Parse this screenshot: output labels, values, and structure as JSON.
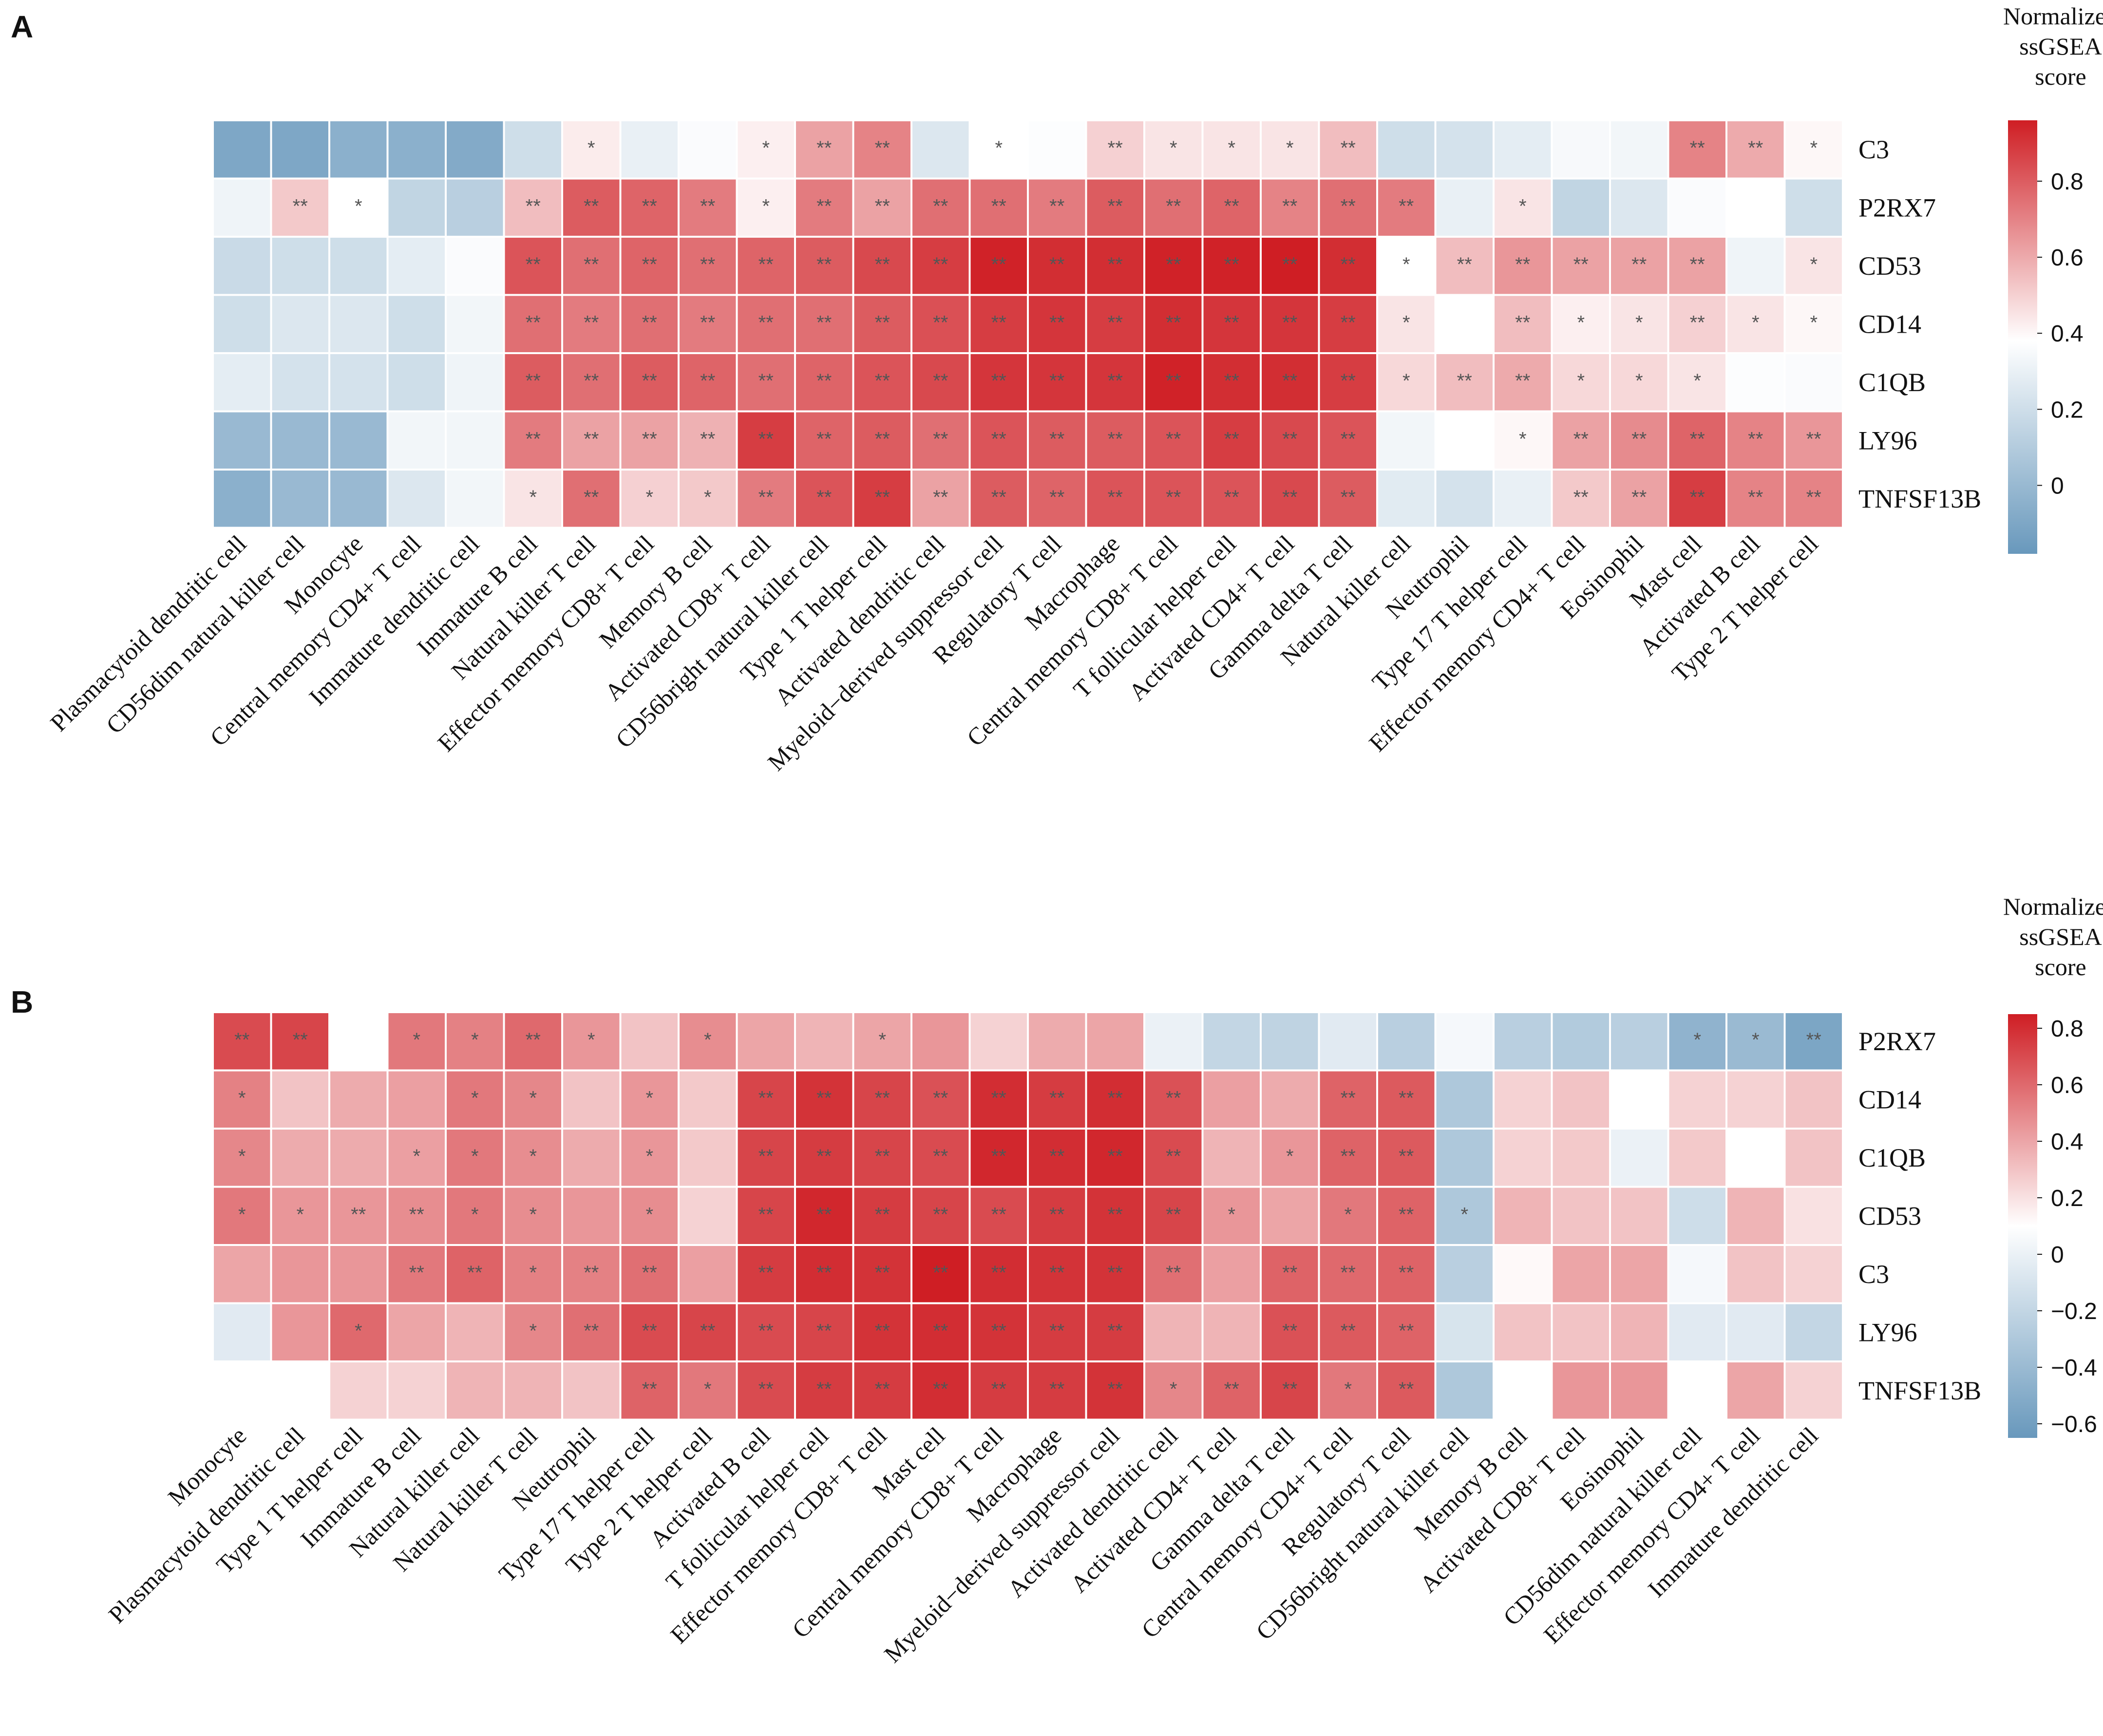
{
  "chart_data": [
    {
      "type": "heatmap",
      "panel_label": "A",
      "colorbar_title": [
        "Normalized",
        "ssGSEA",
        "score"
      ],
      "colorbar_ticks": [
        "0",
        "0.2",
        "0.4",
        "0.6",
        "0.8"
      ],
      "vmin": -0.18,
      "vmax": 0.96,
      "vcenter": 0.38,
      "rows": [
        "C3",
        "P2RX7",
        "CD53",
        "CD14",
        "C1QB",
        "LY96",
        "TNFSF13B"
      ],
      "columns": [
        "Plasmacytoid dendritic cell",
        "CD56dim natural killer cell",
        "Monocyte",
        "Central memory CD4+ T cell",
        "Immature dendritic cell",
        "Immature  B cell",
        "Natural killer T cell",
        "Effector memory CD8+ T cell",
        "Memory B cell",
        "Activated CD8+ T cell",
        "CD56bright natural killer cell",
        "Type 1 T helper cell",
        "Activated dendritic cell",
        "Myeloid−derived suppressor cell",
        "Regulatory T cell",
        "Macrophage",
        "Central memory CD8+ T cell",
        "T follicular helper cell",
        "Activated CD4+ T cell",
        "Gamma delta T cell",
        "Natural killer cell",
        "Neutrophil",
        "Type 17 T helper cell",
        "Effector memory CD4+ T cell",
        "Eosinophil",
        "Mast cell",
        "Activated B cell",
        "Type 2 T helper cell"
      ],
      "values": [
        [
          -0.1,
          -0.1,
          -0.05,
          -0.05,
          -0.08,
          0.2,
          0.43,
          0.3,
          0.36,
          0.42,
          0.62,
          0.7,
          0.25,
          0.38,
          0.37,
          0.5,
          0.45,
          0.45,
          0.45,
          0.55,
          0.2,
          0.22,
          0.28,
          0.35,
          0.33,
          0.7,
          0.6,
          0.4
        ],
        [
          0.32,
          0.52,
          0.38,
          0.15,
          0.12,
          0.55,
          0.8,
          0.78,
          0.72,
          0.42,
          0.72,
          0.62,
          0.75,
          0.75,
          0.72,
          0.8,
          0.75,
          0.78,
          0.7,
          0.75,
          0.72,
          0.3,
          0.45,
          0.15,
          0.25,
          0.36,
          0.38,
          0.2
        ],
        [
          0.18,
          0.2,
          0.2,
          0.28,
          0.36,
          0.82,
          0.75,
          0.78,
          0.75,
          0.78,
          0.8,
          0.85,
          0.88,
          0.95,
          0.92,
          0.92,
          0.95,
          0.95,
          0.96,
          0.92,
          0.38,
          0.55,
          0.65,
          0.62,
          0.62,
          0.62,
          0.32,
          0.45
        ],
        [
          0.2,
          0.25,
          0.25,
          0.2,
          0.33,
          0.75,
          0.72,
          0.75,
          0.72,
          0.75,
          0.75,
          0.8,
          0.83,
          0.88,
          0.9,
          0.88,
          0.92,
          0.9,
          0.9,
          0.88,
          0.45,
          0.38,
          0.55,
          0.42,
          0.45,
          0.5,
          0.45,
          0.4
        ],
        [
          0.28,
          0.22,
          0.22,
          0.2,
          0.32,
          0.8,
          0.75,
          0.8,
          0.78,
          0.75,
          0.78,
          0.82,
          0.85,
          0.9,
          0.9,
          0.9,
          0.95,
          0.92,
          0.92,
          0.88,
          0.48,
          0.55,
          0.6,
          0.48,
          0.48,
          0.45,
          0.37,
          0.36
        ],
        [
          0.0,
          0.0,
          0.0,
          0.33,
          0.33,
          0.72,
          0.62,
          0.62,
          0.58,
          0.88,
          0.78,
          0.8,
          0.75,
          0.82,
          0.8,
          0.8,
          0.82,
          0.88,
          0.85,
          0.82,
          0.33,
          0.38,
          0.4,
          0.62,
          0.68,
          0.78,
          0.7,
          0.65
        ],
        [
          -0.05,
          0.0,
          0.0,
          0.25,
          0.33,
          0.45,
          0.75,
          0.5,
          0.52,
          0.72,
          0.82,
          0.88,
          0.62,
          0.8,
          0.78,
          0.82,
          0.82,
          0.82,
          0.85,
          0.8,
          0.27,
          0.22,
          0.3,
          0.52,
          0.62,
          0.88,
          0.7,
          0.7
        ]
      ],
      "significance": [
        [
          "",
          "",
          "",
          "",
          "",
          "",
          "*",
          "",
          "",
          "*",
          "**",
          "**",
          "",
          "*",
          "",
          "**",
          "*",
          "*",
          "*",
          "**",
          "",
          "",
          "",
          "",
          "",
          "**",
          "**",
          "*"
        ],
        [
          "",
          "**",
          "*",
          "",
          "",
          "**",
          "**",
          "**",
          "**",
          "*",
          "**",
          "**",
          "**",
          "**",
          "**",
          "**",
          "**",
          "**",
          "**",
          "**",
          "**",
          "",
          "*",
          "",
          "",
          "",
          "",
          ""
        ],
        [
          "",
          "",
          "",
          "",
          "",
          "**",
          "**",
          "**",
          "**",
          "**",
          "**",
          "**",
          "**",
          "**",
          "**",
          "**",
          "**",
          "**",
          "**",
          "**",
          "*",
          "**",
          "**",
          "**",
          "**",
          "**",
          "",
          "*"
        ],
        [
          "",
          "",
          "",
          "",
          "",
          "**",
          "**",
          "**",
          "**",
          "**",
          "**",
          "**",
          "**",
          "**",
          "**",
          "**",
          "**",
          "**",
          "**",
          "**",
          "*",
          "",
          "**",
          "*",
          "*",
          "**",
          "*",
          "*"
        ],
        [
          "",
          "",
          "",
          "",
          "",
          "**",
          "**",
          "**",
          "**",
          "**",
          "**",
          "**",
          "**",
          "**",
          "**",
          "**",
          "**",
          "**",
          "**",
          "**",
          "*",
          "**",
          "**",
          "*",
          "*",
          "*",
          "",
          ""
        ],
        [
          "",
          "",
          "",
          "",
          "",
          "**",
          "**",
          "**",
          "**",
          "**",
          "**",
          "**",
          "**",
          "**",
          "**",
          "**",
          "**",
          "**",
          "**",
          "**",
          "",
          "",
          "*",
          "**",
          "**",
          "**",
          "**",
          "**"
        ],
        [
          "",
          "",
          "",
          "",
          "",
          "*",
          "**",
          "*",
          "*",
          "**",
          "**",
          "**",
          "**",
          "**",
          "**",
          "**",
          "**",
          "**",
          "**",
          "**",
          "",
          "",
          "",
          "**",
          "**",
          "**",
          "**",
          "**"
        ]
      ]
    },
    {
      "type": "heatmap",
      "panel_label": "B",
      "colorbar_title": [
        "Normalized",
        "ssGSEA",
        "score"
      ],
      "colorbar_ticks": [
        "−0.6",
        "−0.4",
        "−0.2",
        "0",
        "0.2",
        "0.4",
        "0.6",
        "0.8"
      ],
      "vmin": -0.65,
      "vmax": 0.85,
      "vcenter": 0.1,
      "rows": [
        "P2RX7",
        "CD14",
        "C1QB",
        "CD53",
        "C3",
        "LY96",
        "TNFSF13B"
      ],
      "columns": [
        "Monocyte",
        "Plasmacytoid dendritic cell",
        "Type 1 T helper cell",
        "Immature  B cell",
        "Natural killer cell",
        "Natural killer T cell",
        "Neutrophil",
        "Type 17 T helper cell",
        "Type 2 T helper cell",
        "Activated B cell",
        "T follicular helper cell",
        "Effector memory CD8+ T cell",
        "Mast cell",
        "Central memory CD8+ T cell",
        "Macrophage",
        "Myeloid−derived suppressor cell",
        "Activated dendritic cell",
        "Activated CD4+ T cell",
        "Gamma delta T cell",
        "Central memory CD4+ T cell",
        "Regulatory T cell",
        "CD56bright natural killer cell",
        "Memory B cell",
        "Activated CD8+ T cell",
        "Eosinophil",
        "CD56dim natural killer cell",
        "Effector memory CD4+ T cell",
        "Immature dendritic cell"
      ],
      "values": [
        [
          0.7,
          0.72,
          0.1,
          0.55,
          0.52,
          0.6,
          0.45,
          0.3,
          0.48,
          0.4,
          0.35,
          0.4,
          0.45,
          0.25,
          0.38,
          0.4,
          0.0,
          -0.2,
          -0.22,
          -0.05,
          -0.25,
          0.05,
          -0.25,
          -0.28,
          -0.25,
          -0.45,
          -0.4,
          -0.55
        ],
        [
          0.52,
          0.3,
          0.38,
          0.42,
          0.55,
          0.5,
          0.3,
          0.45,
          0.28,
          0.72,
          0.78,
          0.72,
          0.68,
          0.8,
          0.75,
          0.8,
          0.68,
          0.42,
          0.38,
          0.62,
          0.65,
          -0.3,
          0.25,
          0.3,
          0.1,
          0.25,
          0.25,
          0.3
        ],
        [
          0.5,
          0.38,
          0.38,
          0.42,
          0.55,
          0.48,
          0.38,
          0.45,
          0.28,
          0.72,
          0.75,
          0.72,
          0.7,
          0.82,
          0.8,
          0.82,
          0.7,
          0.35,
          0.45,
          0.62,
          0.65,
          -0.3,
          0.25,
          0.28,
          0.0,
          0.28,
          0.1,
          0.3
        ],
        [
          0.55,
          0.45,
          0.45,
          0.48,
          0.55,
          0.48,
          0.45,
          0.48,
          0.25,
          0.72,
          0.82,
          0.75,
          0.72,
          0.7,
          0.75,
          0.78,
          0.72,
          0.45,
          0.4,
          0.55,
          0.62,
          -0.3,
          0.35,
          0.3,
          0.3,
          -0.15,
          0.35,
          0.2
        ],
        [
          0.4,
          0.45,
          0.45,
          0.55,
          0.62,
          0.52,
          0.52,
          0.58,
          0.42,
          0.75,
          0.8,
          0.78,
          0.85,
          0.8,
          0.78,
          0.78,
          0.58,
          0.42,
          0.62,
          0.6,
          0.62,
          -0.25,
          0.12,
          0.4,
          0.4,
          0.05,
          0.3,
          0.25
        ],
        [
          -0.05,
          0.45,
          0.6,
          0.4,
          0.35,
          0.5,
          0.58,
          0.7,
          0.72,
          0.7,
          0.72,
          0.78,
          0.8,
          0.78,
          0.75,
          0.75,
          0.35,
          0.35,
          0.68,
          0.65,
          0.62,
          -0.1,
          0.3,
          0.3,
          0.35,
          -0.05,
          -0.05,
          -0.2
        ],
        [
          0.1,
          0.1,
          0.25,
          0.25,
          0.35,
          0.35,
          0.3,
          0.62,
          0.55,
          0.7,
          0.75,
          0.75,
          0.8,
          0.75,
          0.75,
          0.78,
          0.5,
          0.62,
          0.72,
          0.55,
          0.65,
          -0.3,
          0.1,
          0.45,
          0.45,
          0.1,
          0.4,
          0.25
        ]
      ],
      "significance": [
        [
          "**",
          "**",
          "",
          "*",
          "*",
          "**",
          "*",
          "",
          "*",
          "",
          "",
          "*",
          "",
          "",
          "",
          "",
          "",
          "",
          "",
          "",
          "",
          "",
          "",
          "",
          "",
          "*",
          "*",
          "**"
        ],
        [
          "*",
          "",
          "",
          "",
          "*",
          "*",
          "",
          "*",
          "",
          "**",
          "**",
          "**",
          "**",
          "**",
          "**",
          "**",
          "**",
          "",
          "",
          "**",
          "**",
          "",
          "",
          "",
          "",
          "",
          "",
          ""
        ],
        [
          "*",
          "",
          "",
          "*",
          "*",
          "*",
          "",
          "*",
          "",
          "**",
          "**",
          "**",
          "**",
          "**",
          "**",
          "**",
          "**",
          "",
          "*",
          "**",
          "**",
          "",
          "",
          "",
          "",
          "",
          "",
          ""
        ],
        [
          "*",
          "*",
          "**",
          "**",
          "*",
          "*",
          "",
          "*",
          "",
          "**",
          "**",
          "**",
          "**",
          "**",
          "**",
          "**",
          "**",
          "*",
          "",
          "*",
          "**",
          "*",
          "",
          "",
          "",
          "",
          "",
          ""
        ],
        [
          "",
          "",
          "",
          "**",
          "**",
          "*",
          "**",
          "**",
          "",
          "**",
          "**",
          "**",
          "**",
          "**",
          "**",
          "**",
          "**",
          "",
          "**",
          "**",
          "**",
          "",
          "",
          "",
          "",
          "",
          "",
          ""
        ],
        [
          "",
          "",
          "*",
          "",
          "",
          "*",
          "**",
          "**",
          "**",
          "**",
          "**",
          "**",
          "**",
          "**",
          "**",
          "**",
          "",
          "",
          "**",
          "**",
          "**",
          "",
          "",
          "",
          "",
          "",
          "",
          ""
        ],
        [
          "",
          "",
          "",
          "",
          "",
          "",
          "",
          "**",
          "*",
          "**",
          "**",
          "**",
          "**",
          "**",
          "**",
          "**",
          "*",
          "**",
          "**",
          "*",
          "**",
          "",
          "",
          "",
          "",
          "",
          "",
          ""
        ]
      ]
    }
  ]
}
